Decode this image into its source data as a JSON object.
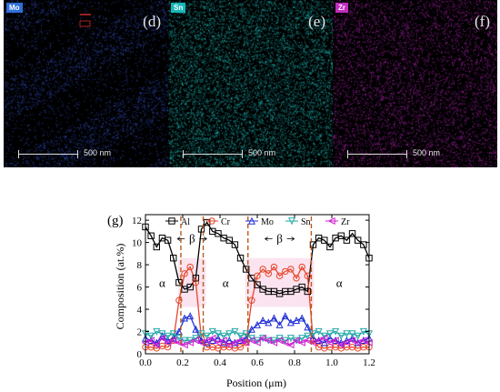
{
  "maps": [
    {
      "tag": "Mo",
      "tag_color": "#2f6fd8",
      "panel": "(d)",
      "scale": "500 nm",
      "dot_color": "#3b59d9"
    },
    {
      "tag": "Sn",
      "tag_color": "#18b7b7",
      "panel": "(e)",
      "scale": "500 nm",
      "dot_color": "#23c6c6"
    },
    {
      "tag": "Zr",
      "tag_color": "#c02bc0",
      "panel": "(f)",
      "scale": "500 nm",
      "dot_color": "#c02bc0"
    }
  ],
  "chart_data": {
    "type": "line",
    "panel_label": "(g)",
    "xlabel": "Position (μm)",
    "ylabel": "Composition (at.%)",
    "xlim": [
      0.0,
      1.2
    ],
    "ylim": [
      0,
      12.5
    ],
    "xticks": [
      "0.0",
      "0.2",
      "0.4",
      "0.6",
      "0.8",
      "1.0",
      "1.2"
    ],
    "yticks": [
      "0",
      "2",
      "4",
      "6",
      "8",
      "10",
      "12"
    ],
    "legend_position": "top",
    "series": [
      {
        "name": "Al",
        "color": "#000000",
        "marker": "square",
        "x": [
          0.0,
          0.03,
          0.06,
          0.09,
          0.12,
          0.15,
          0.18,
          0.21,
          0.24,
          0.27,
          0.3,
          0.33,
          0.36,
          0.39,
          0.42,
          0.45,
          0.48,
          0.51,
          0.54,
          0.57,
          0.6,
          0.63,
          0.66,
          0.69,
          0.72,
          0.75,
          0.78,
          0.81,
          0.84,
          0.87,
          0.9,
          0.93,
          0.96,
          0.99,
          1.02,
          1.05,
          1.08,
          1.11,
          1.14,
          1.17,
          1.2
        ],
        "y": [
          11.4,
          10.6,
          9.6,
          10.4,
          10.2,
          8.6,
          6.4,
          5.8,
          6.0,
          6.8,
          11.2,
          11.8,
          11.0,
          10.8,
          10.4,
          10.2,
          9.8,
          8.6,
          7.6,
          6.8,
          6.2,
          5.8,
          5.6,
          5.6,
          5.4,
          5.6,
          5.6,
          5.8,
          6.0,
          5.6,
          9.8,
          10.4,
          10.2,
          9.6,
          10.4,
          10.6,
          10.2,
          10.8,
          10.2,
          9.8,
          8.6
        ]
      },
      {
        "name": "Cr",
        "color": "#e8452a",
        "marker": "circle",
        "x": [
          0.0,
          0.03,
          0.06,
          0.09,
          0.12,
          0.15,
          0.18,
          0.21,
          0.24,
          0.27,
          0.3,
          0.33,
          0.36,
          0.39,
          0.42,
          0.45,
          0.48,
          0.51,
          0.54,
          0.57,
          0.6,
          0.63,
          0.66,
          0.69,
          0.72,
          0.75,
          0.78,
          0.81,
          0.84,
          0.87,
          0.9,
          0.93,
          0.96,
          0.99,
          1.02,
          1.05,
          1.08,
          1.11,
          1.14,
          1.17,
          1.2
        ],
        "y": [
          0.6,
          0.6,
          0.5,
          0.7,
          0.6,
          1.2,
          4.8,
          7.2,
          7.8,
          6.4,
          1.4,
          0.6,
          0.6,
          0.5,
          0.6,
          0.6,
          0.5,
          0.6,
          1.0,
          4.8,
          7.0,
          7.6,
          7.2,
          7.8,
          7.0,
          7.4,
          7.6,
          6.8,
          7.8,
          7.0,
          1.2,
          0.6,
          0.5,
          0.6,
          0.6,
          0.5,
          0.6,
          0.6,
          0.5,
          0.6,
          0.6
        ]
      },
      {
        "name": "Mo",
        "color": "#1f2fd6",
        "marker": "triangle-up",
        "x": [
          0.0,
          0.03,
          0.06,
          0.09,
          0.12,
          0.15,
          0.18,
          0.21,
          0.24,
          0.27,
          0.3,
          0.33,
          0.36,
          0.39,
          0.42,
          0.45,
          0.48,
          0.51,
          0.54,
          0.57,
          0.6,
          0.63,
          0.66,
          0.69,
          0.72,
          0.75,
          0.78,
          0.81,
          0.84,
          0.87,
          0.9,
          0.93,
          0.96,
          0.99,
          1.02,
          1.05,
          1.08,
          1.11,
          1.14,
          1.17,
          1.2
        ],
        "y": [
          1.4,
          1.2,
          1.0,
          1.6,
          1.2,
          1.4,
          2.0,
          3.2,
          3.4,
          2.2,
          1.2,
          1.0,
          1.2,
          1.4,
          1.0,
          1.2,
          1.0,
          1.2,
          1.4,
          2.2,
          2.6,
          3.0,
          2.8,
          3.2,
          2.6,
          3.4,
          2.8,
          3.0,
          3.2,
          2.4,
          1.4,
          1.2,
          1.0,
          1.4,
          1.2,
          1.0,
          1.2,
          1.4,
          1.0,
          1.2,
          1.4
        ]
      },
      {
        "name": "Sn",
        "color": "#24a8a8",
        "marker": "triangle-down",
        "x": [
          0.0,
          0.03,
          0.06,
          0.09,
          0.12,
          0.15,
          0.18,
          0.21,
          0.24,
          0.27,
          0.3,
          0.33,
          0.36,
          0.39,
          0.42,
          0.45,
          0.48,
          0.51,
          0.54,
          0.57,
          0.6,
          0.63,
          0.66,
          0.69,
          0.72,
          0.75,
          0.78,
          0.81,
          0.84,
          0.87,
          0.9,
          0.93,
          0.96,
          0.99,
          1.02,
          1.05,
          1.08,
          1.11,
          1.14,
          1.17,
          1.2
        ],
        "y": [
          1.8,
          1.6,
          2.0,
          1.8,
          1.6,
          1.8,
          1.4,
          1.2,
          1.2,
          1.4,
          1.8,
          1.6,
          2.0,
          1.8,
          1.6,
          1.8,
          2.0,
          1.6,
          1.8,
          1.4,
          1.2,
          1.4,
          1.2,
          1.2,
          1.4,
          1.2,
          1.4,
          1.2,
          1.4,
          1.6,
          1.8,
          2.0,
          1.6,
          1.8,
          2.0,
          1.6,
          1.8,
          1.8,
          1.6,
          2.0,
          1.8
        ]
      },
      {
        "name": "Zr",
        "color": "#d21ad2",
        "marker": "triangle-left",
        "x": [
          0.0,
          0.03,
          0.06,
          0.09,
          0.12,
          0.15,
          0.18,
          0.21,
          0.24,
          0.27,
          0.3,
          0.33,
          0.36,
          0.39,
          0.42,
          0.45,
          0.48,
          0.51,
          0.54,
          0.57,
          0.6,
          0.63,
          0.66,
          0.69,
          0.72,
          0.75,
          0.78,
          0.81,
          0.84,
          0.87,
          0.9,
          0.93,
          0.96,
          0.99,
          1.02,
          1.05,
          1.08,
          1.11,
          1.14,
          1.17,
          1.2
        ],
        "y": [
          1.0,
          1.2,
          0.8,
          1.4,
          1.0,
          1.2,
          1.0,
          0.8,
          1.0,
          1.2,
          1.0,
          1.2,
          1.4,
          1.0,
          1.2,
          0.8,
          1.0,
          1.2,
          1.0,
          1.2,
          1.0,
          1.4,
          1.2,
          1.0,
          1.2,
          1.0,
          0.8,
          1.2,
          1.0,
          1.2,
          1.0,
          1.2,
          1.4,
          1.0,
          1.2,
          0.8,
          1.0,
          1.2,
          1.0,
          1.2,
          1.0
        ]
      }
    ],
    "boundaries": [
      0.19,
      0.31,
      0.55,
      0.89
    ],
    "annotations": [
      {
        "text": "α",
        "x": 0.09,
        "y": 6.0
      },
      {
        "text": "β",
        "x": 0.25,
        "y": 10.0
      },
      {
        "text": "α",
        "x": 0.43,
        "y": 6.0
      },
      {
        "text": "β",
        "x": 0.72,
        "y": 10.0
      },
      {
        "text": "α",
        "x": 1.04,
        "y": 6.0
      }
    ]
  }
}
